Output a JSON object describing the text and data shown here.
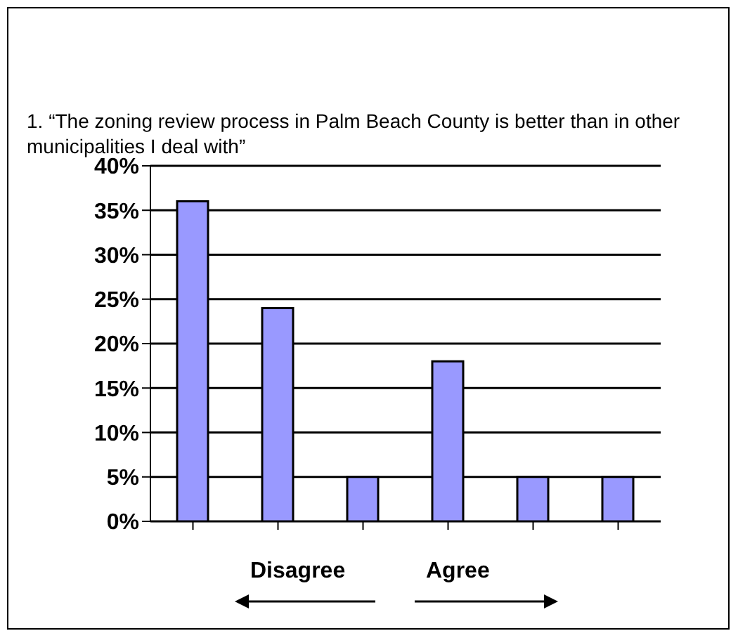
{
  "chart_data": {
    "type": "bar",
    "title": "1. “The zoning review process in Palm Beach County is better than in other municipalities I deal with”",
    "categories": [
      null,
      null,
      null,
      null,
      null,
      null
    ],
    "values": [
      36,
      24,
      5,
      18,
      5,
      5
    ],
    "color": "#9999ff",
    "ylim": [
      0,
      40
    ],
    "yticks": [
      {
        "value": 0,
        "label": "0%"
      },
      {
        "value": 5,
        "label": "5%"
      },
      {
        "value": 10,
        "label": "10%"
      },
      {
        "value": 15,
        "label": "15%"
      },
      {
        "value": 20,
        "label": "20%"
      },
      {
        "value": 25,
        "label": "25%"
      },
      {
        "value": 30,
        "label": "30%"
      },
      {
        "value": 35,
        "label": "35%"
      },
      {
        "value": 40,
        "label": "40%"
      }
    ],
    "grid": "y",
    "annotations": [
      "Disagree",
      "Agree"
    ]
  }
}
